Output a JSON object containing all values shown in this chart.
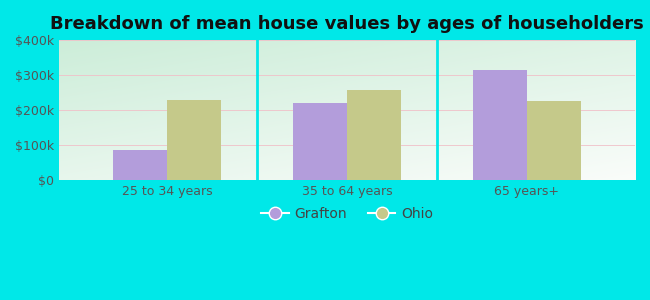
{
  "title": "Breakdown of mean house values by ages of householders",
  "categories": [
    "25 to 34 years",
    "35 to 64 years",
    "65 years+"
  ],
  "grafton_values": [
    85000,
    220000,
    315000
  ],
  "ohio_values": [
    230000,
    258000,
    225000
  ],
  "grafton_color": "#b39ddb",
  "ohio_color": "#c5c98a",
  "background_outer": "#00e8e8",
  "ylim": [
    0,
    400000
  ],
  "yticks": [
    0,
    100000,
    200000,
    300000,
    400000
  ],
  "ytick_labels": [
    "$0",
    "$100k",
    "$200k",
    "$300k",
    "$400k"
  ],
  "bar_width": 0.3,
  "legend_labels": [
    "Grafton",
    "Ohio"
  ],
  "title_fontsize": 13,
  "tick_fontsize": 9,
  "legend_fontsize": 10
}
